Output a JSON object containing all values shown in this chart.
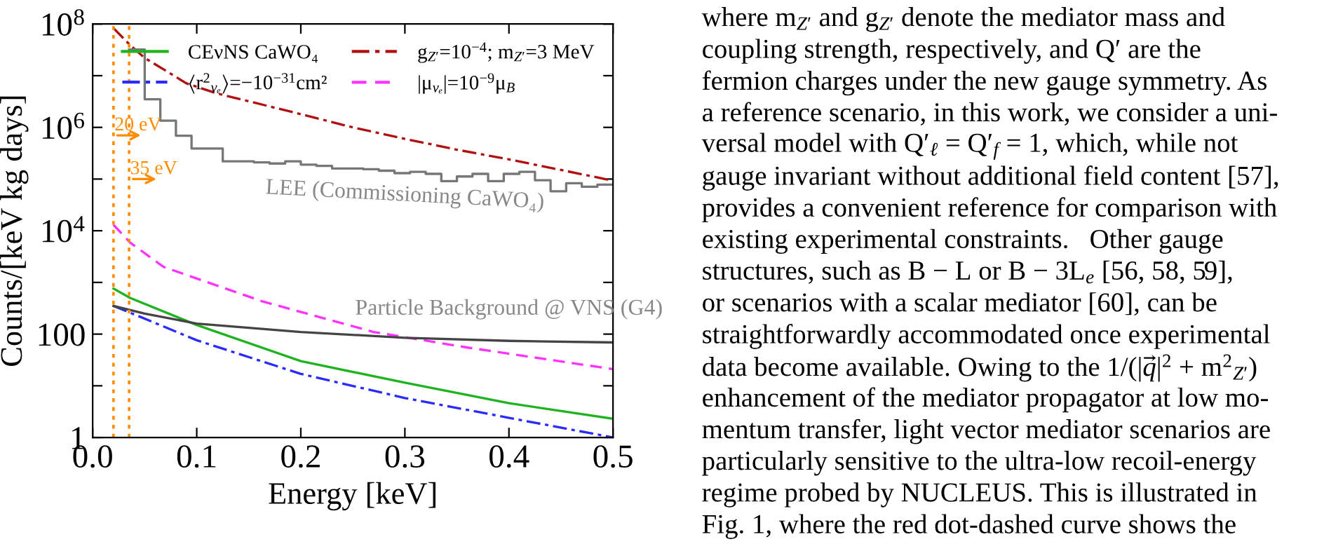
{
  "chart_data": {
    "type": "line",
    "xlabel": "Energy [keV]",
    "ylabel": "Counts/[keV kg days]",
    "xlim": [
      0,
      0.5
    ],
    "xticks": [
      {
        "value": 0,
        "label": "0.0"
      },
      0.1,
      0.2,
      0.3,
      0.4,
      0.5
    ],
    "ylim": [
      1,
      100000000
    ],
    "log": "y",
    "yticks": [
      1,
      {
        "value": 10,
        "label": null
      },
      100,
      {
        "value": 1000,
        "label": null
      },
      {
        "value": 10000,
        "label": "10$^{4}$"
      },
      {
        "value": 100000,
        "label": null
      },
      {
        "value": 1000000,
        "label": "10$^{6}$"
      },
      {
        "value": 10000000,
        "label": null
      },
      {
        "value": 100000000,
        "label": "10$^{8}$"
      }
    ],
    "grid": false,
    "legend": "top right",
    "marker": "none",
    "series": [
      {
        "name": "CEνNS CaWO₄",
        "color": "#1fb31f",
        "line_style": "solid",
        "x": [
          0.02,
          0.036,
          0.1,
          0.2,
          0.3,
          0.4,
          0.5
        ],
        "values": [
          760,
          500,
          150,
          30,
          11.5,
          4.6,
          2.3
        ]
      },
      {
        "name": "⟨r$^{2}$$_{νₑ}$⟩=−10$^{−31}$cm²",
        "color": "#2b2bff",
        "line_style": "dashdot",
        "x": [
          0.02,
          0.036,
          0.1,
          0.2,
          0.3,
          0.4,
          0.5
        ],
        "values": [
          350,
          260,
          76,
          17,
          5.8,
          2.4,
          1
        ]
      },
      {
        "name": "g$_{Z′}$=10$^{−4}$; m$_{Z′}$=3 MeV",
        "color": "#b01010",
        "line_style": "dashdot",
        "x": [
          0.02,
          0.036,
          0.05,
          0.07,
          0.09,
          0.12,
          0.15,
          0.2,
          0.25,
          0.3,
          0.35,
          0.4,
          0.45,
          0.5
        ],
        "values": [
          83000000,
          39000000,
          22000000,
          12600000,
          7100000,
          4500000,
          3200000,
          1800000,
          1000000,
          600000,
          370000,
          240000,
          150000,
          93000
        ]
      },
      {
        "name": "|μ$_{νₑ}$|=10$^{−9}$μ$_{B}$",
        "color": "#ff33ff",
        "line_style": "dashed",
        "x": [
          0.02,
          0.036,
          0.068,
          0.163,
          0.27,
          0.36,
          0.5
        ],
        "values": [
          13000,
          5900,
          2000,
          430,
          110,
          55,
          21
        ]
      },
      {
        "color": "#444444",
        "line_style": "solid",
        "x": [
          0.02,
          0.05,
          0.1,
          0.2,
          0.3,
          0.4,
          0.5
        ],
        "values": [
          350,
          250,
          160,
          110,
          85,
          74,
          69
        ]
      },
      {
        "type": "step",
        "color": "#777777",
        "line_style": "solid",
        "x": [
          0.035,
          0.05,
          0.065,
          0.08,
          0.095,
          0.11,
          0.125,
          0.14,
          0.155,
          0.17,
          0.185,
          0.2,
          0.215,
          0.23,
          0.245,
          0.26,
          0.275,
          0.29,
          0.305,
          0.32,
          0.335,
          0.35,
          0.365,
          0.38,
          0.395,
          0.41,
          0.425,
          0.44,
          0.455,
          0.47,
          0.485,
          0.5
        ],
        "values": [
          32000000,
          3500000,
          1350000,
          690000,
          390000,
          390000,
          220000,
          220000,
          210000,
          200000,
          220000,
          190000,
          180000,
          160000,
          160000,
          155000,
          145000,
          130000,
          138000,
          126000,
          91000,
          112000,
          126000,
          91000,
          126000,
          138000,
          95000,
          58000,
          83000,
          71000,
          78000,
          78000
        ]
      }
    ],
    "ref_lines": [
      {
        "axis": "x",
        "value": 0.02,
        "label": "20 eV",
        "color": "#ff8c00",
        "line_style": "dotted"
      },
      {
        "axis": "x",
        "value": 0.035,
        "label": "35 eV",
        "color": "#ff8c00",
        "line_style": "dotted"
      }
    ],
    "annotations": [
      "LEE (Commissioning CaWO₄)",
      "Particle Background @ VNS (G4)",
      "where m$_{Z′}$ and g$_{Z′}$ denote the mediator mass and",
      "coupling strength, respectively, and Q′ are the",
      "fermion charges under the new gauge symmetry. As",
      "a reference scenario, in this work, we consider a uni-",
      "versal model with Q′$_{ℓ}$ = Q′$_{f}$ = 1, which, while not",
      "gauge invariant without additional field content [57],",
      "provides a convenient reference for comparison with",
      "existing experimental constraints.   Other gauge",
      "structures, such as B − L or B − 3L$_{e}$ [56, 58, 59],",
      "or scenarios with a scalar mediator [60], can be",
      "straightforwardly accommodated once experimental",
      "data become available. Owing to the 1/(|q⃗|$^{2}$ + m$^{2}$$_{Z′}$)",
      "enhancement of the mediator propagator at low mo-",
      "mentum transfer, light vector mediator scenarios are",
      "particularly sensitive to the ultra-low recoil-energy",
      "regime probed by NUCLEUS. This is illustrated in",
      "Fig. 1, where the red dot-dashed curve shows the"
    ]
  }
}
